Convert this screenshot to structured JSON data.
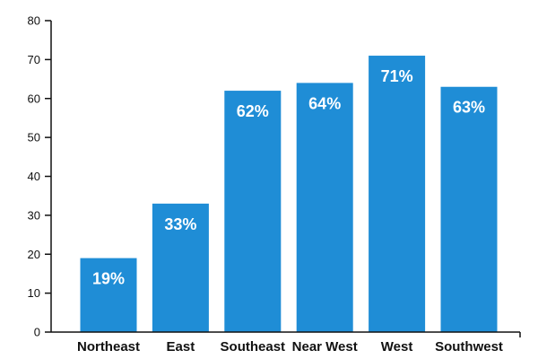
{
  "chart_data": {
    "type": "bar",
    "title": "",
    "xlabel": "",
    "ylabel": "",
    "categories": [
      "Northeast",
      "East",
      "Southeast",
      "Near West",
      "West",
      "Southwest"
    ],
    "values": [
      19,
      33,
      62,
      64,
      71,
      63
    ],
    "value_labels": [
      "19%",
      "33%",
      "62%",
      "64%",
      "71%",
      "63%"
    ],
    "ylim": [
      0,
      80
    ],
    "yticks": [
      0,
      10,
      20,
      30,
      40,
      50,
      60,
      70,
      80
    ],
    "ytick_labels": [
      "0",
      "10",
      "20",
      "30",
      "40",
      "50",
      "60",
      "70",
      "80"
    ],
    "grid": false,
    "legend": "none",
    "bar_color": "#1f8dd6"
  }
}
